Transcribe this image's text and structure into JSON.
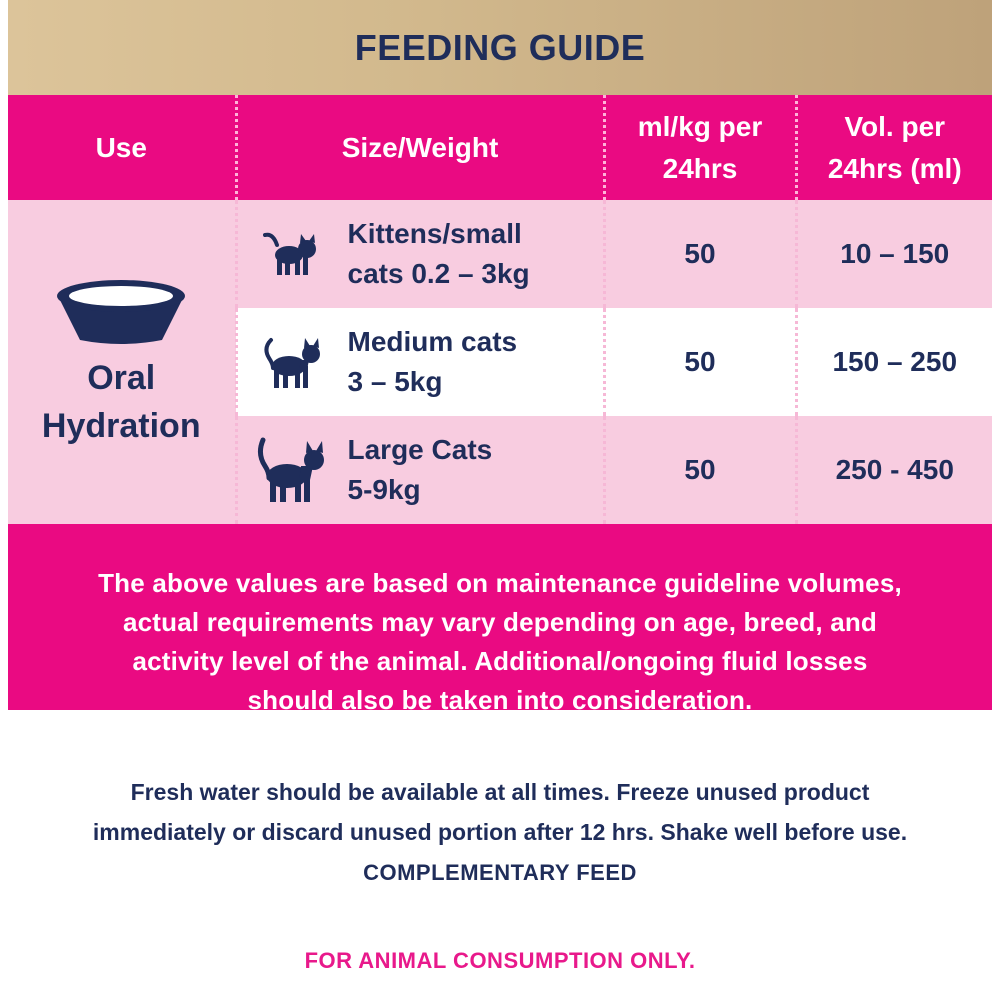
{
  "title": "FEEDING GUIDE",
  "headers": {
    "use": "Use",
    "size": "Size/Weight",
    "mlkg_line1": "ml/kg per",
    "mlkg_line2": "24hrs",
    "vol_line1": "Vol. per",
    "vol_line2": "24hrs (ml)"
  },
  "use": {
    "line1": "Oral",
    "line2": "Hydration",
    "icon": "bowl-icon"
  },
  "rows": [
    {
      "size_line1": "Kittens/small",
      "size_line2": "cats 0.2 – 3kg",
      "mlkg": "50",
      "vol": "10 – 150",
      "icon": "kitten-icon"
    },
    {
      "size_line1": "Medium cats",
      "size_line2": "3 – 5kg",
      "mlkg": "50",
      "vol": "150 – 250",
      "icon": "medium-cat-icon"
    },
    {
      "size_line1": "Large Cats",
      "size_line2": "5-9kg",
      "mlkg": "50",
      "vol": "250 - 450",
      "icon": "large-cat-icon"
    }
  ],
  "note": {
    "line1": "The above values are based on maintenance guideline volumes,",
    "line2": "actual requirements may vary depending on age, breed, and",
    "line3": "activity level of the animal. Additional/ongoing fluid losses",
    "line4": "should also be taken into consideration."
  },
  "footer": {
    "line1": "Fresh water should be available at all times. Freeze unused product",
    "line2": "immediately or discard unused portion after 12 hrs. Shake well before use.",
    "line3": "COMPLEMENTARY FEED"
  },
  "consumption": "FOR ANIMAL CONSUMPTION ONLY.",
  "colors": {
    "pink": "#ea0a82",
    "light_pink": "#f8cce0",
    "navy": "#1f2d5a",
    "gold": "#d2b98d"
  }
}
